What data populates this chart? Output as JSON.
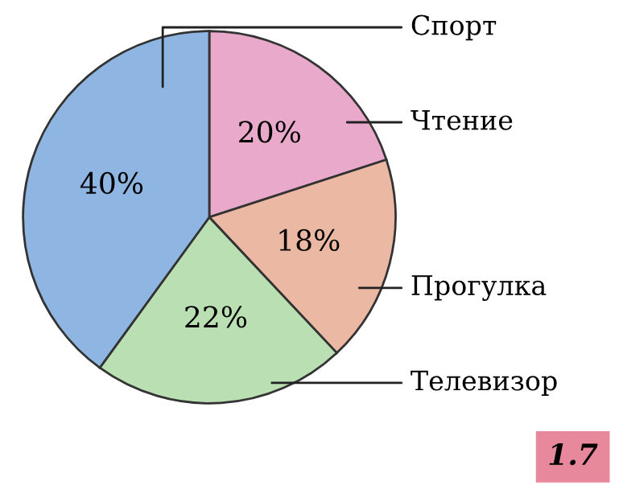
{
  "chart_data": {
    "type": "pie",
    "categories": [
      "Чтение",
      "Прогулка",
      "Телевизор",
      "Спорт"
    ],
    "values": [
      20,
      18,
      22,
      40
    ],
    "colors": [
      "#e9a9cb",
      "#ebb9a3",
      "#b9dfb3",
      "#8fb5e3"
    ],
    "value_labels": [
      "20%",
      "18%",
      "22%",
      "40%"
    ],
    "annotations": [
      "1.7"
    ]
  }
}
